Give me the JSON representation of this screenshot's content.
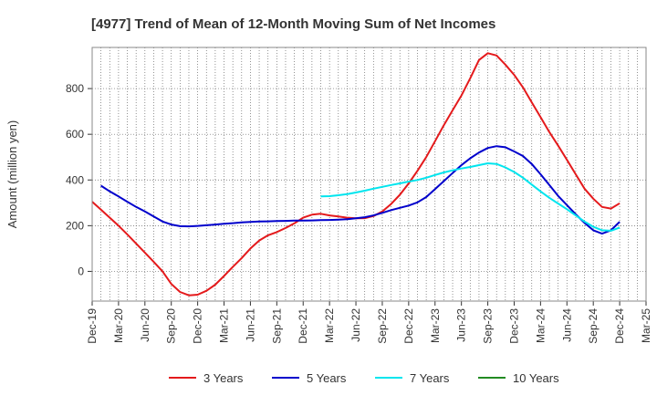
{
  "chart_data": {
    "type": "line",
    "title": "[4977]  Trend of Mean of 12-Month Moving Sum of Net Incomes",
    "ylabel": "Amount (million yen)",
    "xlabel": "",
    "ylim": [
      -130,
      980
    ],
    "yticks": [
      0,
      200,
      400,
      600,
      800
    ],
    "x_start": "Dec-19",
    "x_end": "Mar-25",
    "x_tick_labels": [
      "Dec-19",
      "Mar-20",
      "Jun-20",
      "Sep-20",
      "Dec-20",
      "Mar-21",
      "Jun-21",
      "Sep-21",
      "Dec-21",
      "Mar-22",
      "Jun-22",
      "Sep-22",
      "Dec-22",
      "Mar-23",
      "Jun-23",
      "Sep-23",
      "Dec-23",
      "Mar-24",
      "Jun-24",
      "Sep-24",
      "Dec-24",
      "Mar-25"
    ],
    "grid": true,
    "legend_position": "bottom",
    "series": [
      {
        "name": "3 Years",
        "color": "#e41a1c",
        "points": [
          [
            "Dec-19",
            305
          ],
          [
            "Jan-20",
            270
          ],
          [
            "Feb-20",
            235
          ],
          [
            "Mar-20",
            200
          ],
          [
            "Apr-20",
            162
          ],
          [
            "May-20",
            122
          ],
          [
            "Jun-20",
            82
          ],
          [
            "Jul-20",
            42
          ],
          [
            "Aug-20",
            0
          ],
          [
            "Sep-20",
            -55
          ],
          [
            "Oct-20",
            -90
          ],
          [
            "Nov-20",
            -105
          ],
          [
            "Dec-20",
            -102
          ],
          [
            "Jan-21",
            -85
          ],
          [
            "Feb-21",
            -58
          ],
          [
            "Mar-21",
            -20
          ],
          [
            "Apr-21",
            20
          ],
          [
            "May-21",
            58
          ],
          [
            "Jun-21",
            100
          ],
          [
            "Jul-21",
            135
          ],
          [
            "Aug-21",
            158
          ],
          [
            "Sep-21",
            172
          ],
          [
            "Oct-21",
            190
          ],
          [
            "Nov-21",
            210
          ],
          [
            "Dec-21",
            235
          ],
          [
            "Jan-22",
            248
          ],
          [
            "Feb-22",
            252
          ],
          [
            "Mar-22",
            245
          ],
          [
            "Apr-22",
            240
          ],
          [
            "May-22",
            235
          ],
          [
            "Jun-22",
            232
          ],
          [
            "Jul-22",
            233
          ],
          [
            "Aug-22",
            242
          ],
          [
            "Sep-22",
            262
          ],
          [
            "Oct-22",
            295
          ],
          [
            "Nov-22",
            335
          ],
          [
            "Dec-22",
            385
          ],
          [
            "Jan-23",
            440
          ],
          [
            "Feb-23",
            500
          ],
          [
            "Mar-23",
            570
          ],
          [
            "Apr-23",
            640
          ],
          [
            "May-23",
            705
          ],
          [
            "Jun-23",
            770
          ],
          [
            "Jul-23",
            845
          ],
          [
            "Aug-23",
            925
          ],
          [
            "Sep-23",
            955
          ],
          [
            "Oct-23",
            945
          ],
          [
            "Nov-23",
            905
          ],
          [
            "Dec-23",
            860
          ],
          [
            "Jan-24",
            805
          ],
          [
            "Feb-24",
            740
          ],
          [
            "Mar-24",
            675
          ],
          [
            "Apr-24",
            610
          ],
          [
            "May-24",
            550
          ],
          [
            "Jun-24",
            488
          ],
          [
            "Jul-24",
            425
          ],
          [
            "Aug-24",
            362
          ],
          [
            "Sep-24",
            318
          ],
          [
            "Oct-24",
            282
          ],
          [
            "Nov-24",
            275
          ],
          [
            "Dec-24",
            298
          ]
        ]
      },
      {
        "name": "5 Years",
        "color": "#0000cc",
        "points": [
          [
            "Dec-19",
            null
          ],
          [
            "Jan-20",
            375
          ],
          [
            "Feb-20",
            350
          ],
          [
            "Mar-20",
            328
          ],
          [
            "Apr-20",
            305
          ],
          [
            "May-20",
            282
          ],
          [
            "Jun-20",
            262
          ],
          [
            "Jul-20",
            240
          ],
          [
            "Aug-20",
            218
          ],
          [
            "Sep-20",
            205
          ],
          [
            "Oct-20",
            198
          ],
          [
            "Nov-20",
            197
          ],
          [
            "Dec-20",
            199
          ],
          [
            "Jan-21",
            202
          ],
          [
            "Feb-21",
            205
          ],
          [
            "Mar-21",
            208
          ],
          [
            "Apr-21",
            211
          ],
          [
            "May-21",
            214
          ],
          [
            "Jun-21",
            216
          ],
          [
            "Jul-21",
            218
          ],
          [
            "Aug-21",
            219
          ],
          [
            "Sep-21",
            220
          ],
          [
            "Oct-21",
            221
          ],
          [
            "Nov-21",
            222
          ],
          [
            "Dec-21",
            222
          ],
          [
            "Jan-22",
            223
          ],
          [
            "Feb-22",
            224
          ],
          [
            "Mar-22",
            225
          ],
          [
            "Apr-22",
            226
          ],
          [
            "May-22",
            228
          ],
          [
            "Jun-22",
            232
          ],
          [
            "Jul-22",
            237
          ],
          [
            "Aug-22",
            245
          ],
          [
            "Sep-22",
            256
          ],
          [
            "Oct-22",
            268
          ],
          [
            "Nov-22",
            278
          ],
          [
            "Dec-22",
            288
          ],
          [
            "Jan-23",
            302
          ],
          [
            "Feb-23",
            325
          ],
          [
            "Mar-23",
            360
          ],
          [
            "Apr-23",
            395
          ],
          [
            "May-23",
            430
          ],
          [
            "Jun-23",
            465
          ],
          [
            "Jul-23",
            495
          ],
          [
            "Aug-23",
            520
          ],
          [
            "Sep-23",
            540
          ],
          [
            "Oct-23",
            548
          ],
          [
            "Nov-23",
            543
          ],
          [
            "Dec-23",
            525
          ],
          [
            "Jan-24",
            505
          ],
          [
            "Feb-24",
            470
          ],
          [
            "Mar-24",
            425
          ],
          [
            "Apr-24",
            378
          ],
          [
            "May-24",
            330
          ],
          [
            "Jun-24",
            290
          ],
          [
            "Jul-24",
            250
          ],
          [
            "Aug-24",
            212
          ],
          [
            "Sep-24",
            180
          ],
          [
            "Oct-24",
            165
          ],
          [
            "Nov-24",
            180
          ],
          [
            "Dec-24",
            217
          ]
        ]
      },
      {
        "name": "7 Years",
        "color": "#00e5ee",
        "points": [
          [
            "Feb-22",
            328
          ],
          [
            "Mar-22",
            329
          ],
          [
            "Apr-22",
            333
          ],
          [
            "May-22",
            338
          ],
          [
            "Jun-22",
            345
          ],
          [
            "Jul-22",
            353
          ],
          [
            "Aug-22",
            362
          ],
          [
            "Sep-22",
            370
          ],
          [
            "Oct-22",
            378
          ],
          [
            "Nov-22",
            385
          ],
          [
            "Dec-22",
            393
          ],
          [
            "Jan-23",
            400
          ],
          [
            "Feb-23",
            410
          ],
          [
            "Mar-23",
            422
          ],
          [
            "Apr-23",
            433
          ],
          [
            "May-23",
            442
          ],
          [
            "Jun-23",
            450
          ],
          [
            "Jul-23",
            457
          ],
          [
            "Aug-23",
            465
          ],
          [
            "Sep-23",
            473
          ],
          [
            "Oct-23",
            470
          ],
          [
            "Nov-23",
            455
          ],
          [
            "Dec-23",
            435
          ],
          [
            "Jan-24",
            410
          ],
          [
            "Feb-24",
            380
          ],
          [
            "Mar-24",
            350
          ],
          [
            "Apr-24",
            322
          ],
          [
            "May-24",
            297
          ],
          [
            "Jun-24",
            272
          ],
          [
            "Jul-24",
            245
          ],
          [
            "Aug-24",
            218
          ],
          [
            "Sep-24",
            195
          ],
          [
            "Oct-24",
            180
          ],
          [
            "Nov-24",
            178
          ],
          [
            "Dec-24",
            192
          ]
        ]
      },
      {
        "name": "10 Years",
        "color": "#228b22",
        "points": []
      }
    ]
  }
}
